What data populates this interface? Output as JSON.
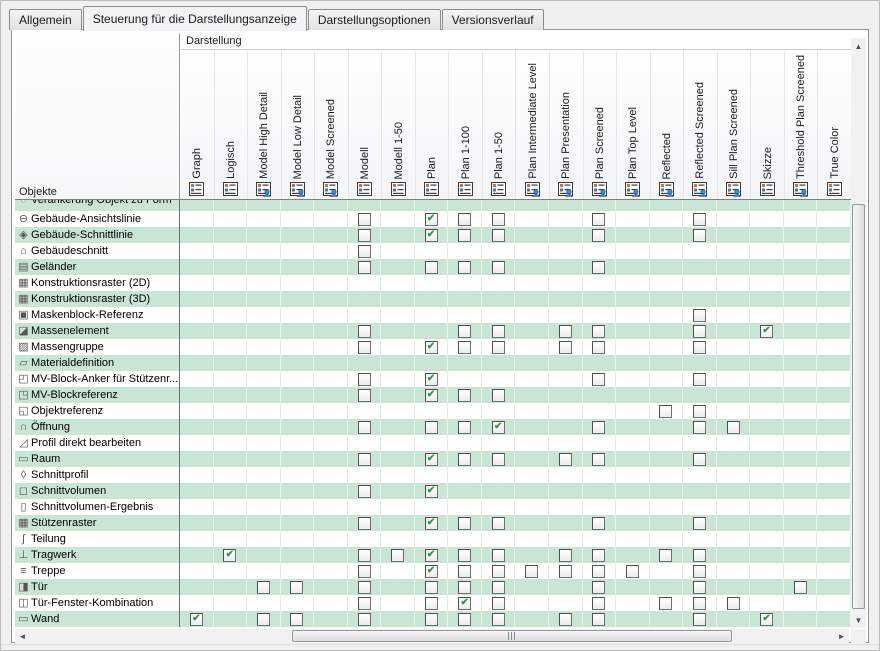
{
  "tabs": [
    {
      "label": "Allgemein",
      "active": false
    },
    {
      "label": "Steuerung für die Darstellungsanzeige",
      "active": true
    },
    {
      "label": "Darstellungsoptionen",
      "active": false
    },
    {
      "label": "Versionsverlauf",
      "active": false
    }
  ],
  "header": {
    "group_label": "Darstellung",
    "objects_label": "Objekte"
  },
  "columns": [
    {
      "label": "Graph",
      "person": false
    },
    {
      "label": "Logisch",
      "person": false
    },
    {
      "label": "Model High Detail",
      "person": true
    },
    {
      "label": "Model Low Detail",
      "person": true
    },
    {
      "label": "Model Screened",
      "person": true
    },
    {
      "label": "Modell",
      "person": false
    },
    {
      "label": "Modell 1-50",
      "person": false
    },
    {
      "label": "Plan",
      "person": false
    },
    {
      "label": "Plan 1-100",
      "person": false
    },
    {
      "label": "Plan 1-50",
      "person": false
    },
    {
      "label": "Plan Intermediate Level",
      "person": true
    },
    {
      "label": "Plan Presentation",
      "person": true
    },
    {
      "label": "Plan Screened",
      "person": true
    },
    {
      "label": "Plan Top Level",
      "person": true
    },
    {
      "label": "Reflected",
      "person": true
    },
    {
      "label": "Reflected Screened",
      "person": true
    },
    {
      "label": "Sill Plan Screened",
      "person": true
    },
    {
      "label": "Skizze",
      "person": false
    },
    {
      "label": "Threshold Plan Screened",
      "person": true
    },
    {
      "label": "True Color",
      "person": false
    }
  ],
  "rows": [
    {
      "label": "Verankerung Objekt zu Form",
      "icon": "◌",
      "clipped": true,
      "cells": {}
    },
    {
      "label": "Gebäude-Ansichtslinie",
      "icon": "⊖",
      "cells": {
        "6": "empty",
        "8": "checked",
        "9": "empty",
        "10": "empty",
        "13": "empty",
        "16": "empty"
      }
    },
    {
      "label": "Gebäude-Schnittlinie",
      "icon": "◈",
      "cells": {
        "6": "empty",
        "8": "checked",
        "9": "empty",
        "10": "empty",
        "13": "empty",
        "16": "empty"
      }
    },
    {
      "label": "Gebäudeschnitt",
      "icon": "⌂",
      "cells": {
        "6": "empty"
      }
    },
    {
      "label": "Geländer",
      "icon": "▤",
      "cells": {
        "6": "empty",
        "8": "empty",
        "9": "empty",
        "10": "empty",
        "13": "empty"
      }
    },
    {
      "label": "Konstruktionsraster (2D)",
      "icon": "▦",
      "cells": {}
    },
    {
      "label": "Konstruktionsraster (3D)",
      "icon": "▦",
      "cells": {}
    },
    {
      "label": "Maskenblock-Referenz",
      "icon": "▣",
      "cells": {
        "16": "empty"
      }
    },
    {
      "label": "Massenelement",
      "icon": "◪",
      "cells": {
        "6": "empty",
        "9": "empty",
        "10": "empty",
        "12": "empty",
        "13": "empty",
        "16": "empty",
        "18": "checked"
      }
    },
    {
      "label": "Massengruppe",
      "icon": "▨",
      "cells": {
        "6": "empty",
        "8": "checked",
        "9": "empty",
        "10": "empty",
        "12": "empty",
        "13": "empty",
        "16": "empty"
      }
    },
    {
      "label": "Materialdefinition",
      "icon": "▱",
      "cells": {}
    },
    {
      "label": "MV-Block-Anker für Stützenr...",
      "icon": "◰",
      "cells": {
        "6": "empty",
        "8": "checked",
        "13": "empty",
        "16": "empty"
      }
    },
    {
      "label": "MV-Blockreferenz",
      "icon": "◳",
      "cells": {
        "6": "empty",
        "8": "checked",
        "9": "empty",
        "10": "empty"
      }
    },
    {
      "label": "Objektreferenz",
      "icon": "◱",
      "cells": {
        "15": "empty",
        "16": "empty"
      }
    },
    {
      "label": "Öffnung",
      "icon": "∩",
      "cells": {
        "6": "empty",
        "8": "empty",
        "9": "empty",
        "10": "checked",
        "13": "empty",
        "16": "empty",
        "17": "empty"
      }
    },
    {
      "label": "Profil direkt bearbeiten",
      "icon": "◿",
      "cells": {}
    },
    {
      "label": "Raum",
      "icon": "▭",
      "cells": {
        "6": "empty",
        "8": "checked",
        "9": "empty",
        "10": "empty",
        "12": "empty",
        "13": "empty",
        "16": "empty"
      }
    },
    {
      "label": "Schnittprofil",
      "icon": "◊",
      "cells": {}
    },
    {
      "label": "Schnittvolumen",
      "icon": "◻",
      "cells": {
        "6": "empty",
        "8": "checked"
      }
    },
    {
      "label": "Schnittvolumen-Ergebnis",
      "icon": "▯",
      "cells": {}
    },
    {
      "label": "Stützenraster",
      "icon": "▦",
      "cells": {
        "6": "empty",
        "8": "checked",
        "9": "empty",
        "10": "empty",
        "13": "empty",
        "16": "empty"
      }
    },
    {
      "label": "Teilung",
      "icon": "∫",
      "cells": {}
    },
    {
      "label": "Tragwerk",
      "icon": "⊥",
      "cells": {
        "2": "checked",
        "6": "empty",
        "7": "empty",
        "8": "checked",
        "9": "empty",
        "10": "empty",
        "12": "empty",
        "13": "empty",
        "15": "empty",
        "16": "empty"
      }
    },
    {
      "label": "Treppe",
      "icon": "≡",
      "cells": {
        "6": "empty",
        "8": "checked",
        "9": "empty",
        "10": "empty",
        "11": "empty",
        "12": "empty",
        "13": "empty",
        "14": "empty",
        "16": "empty"
      }
    },
    {
      "label": "Tür",
      "icon": "◨",
      "cells": {
        "3": "empty",
        "4": "empty",
        "6": "empty",
        "8": "empty",
        "9": "empty",
        "10": "empty",
        "13": "empty",
        "16": "empty",
        "19": "empty"
      }
    },
    {
      "label": "Tür-Fenster-Kombination",
      "icon": "◫",
      "cells": {
        "6": "empty",
        "8": "empty",
        "9": "checked",
        "10": "empty",
        "13": "empty",
        "15": "empty",
        "16": "empty",
        "17": "empty"
      }
    },
    {
      "label": "Wand",
      "icon": "▭",
      "cells": {
        "1": "checked",
        "3": "empty",
        "4": "empty",
        "6": "empty",
        "8": "empty",
        "9": "empty",
        "10": "empty",
        "12": "empty",
        "13": "empty",
        "16": "empty",
        "18": "checked"
      }
    }
  ],
  "glyphs": {
    "check": "✔",
    "scroll_up": "▲",
    "scroll_down": "▼",
    "scroll_left": "◄",
    "scroll_right": "►"
  },
  "colors": {
    "row_green": "#c9e6d5",
    "check_green": "#2e9b3e",
    "icon_orange": "#d96a28",
    "icon_blue": "#3a76c4"
  }
}
